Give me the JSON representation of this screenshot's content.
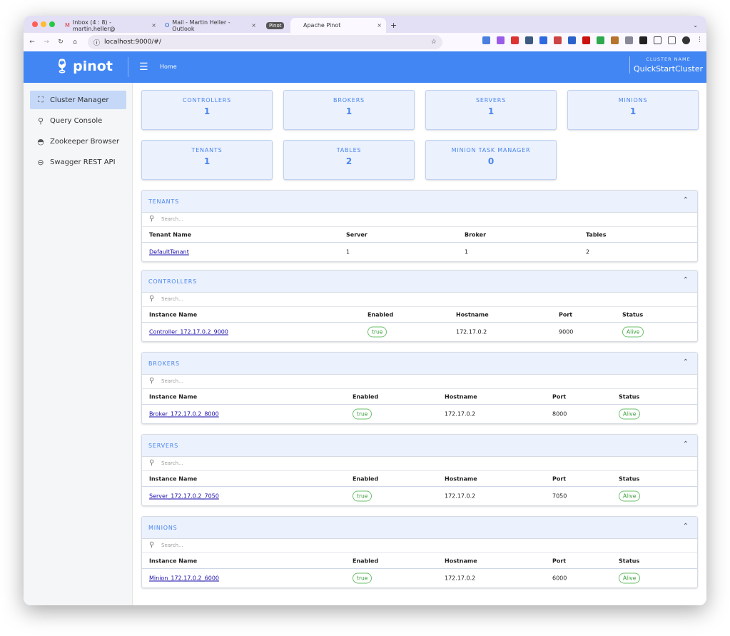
{
  "browser": {
    "tabs": [
      {
        "title": "Inbox (4 : 8) - martin.heller@",
        "icon": "gmail-icon"
      },
      {
        "title": "Mail - Martin Heller - Outlook",
        "icon": "outlook-icon"
      }
    ],
    "tab_group": "Pinot",
    "active_tab": "Apache Pinot",
    "url": "localhost:9000/#/"
  },
  "header": {
    "logo": "pinot",
    "breadcrumb": "Home",
    "cluster_label": "CLUSTER NAME",
    "cluster_name": "QuickStartCluster"
  },
  "sidebar": {
    "items": [
      {
        "label": "Cluster Manager",
        "icon": "cluster-icon",
        "active": true
      },
      {
        "label": "Query Console",
        "icon": "query-icon"
      },
      {
        "label": "Zookeeper Browser",
        "icon": "zookeeper-icon"
      },
      {
        "label": "Swagger REST API",
        "icon": "swagger-icon"
      }
    ]
  },
  "stats": [
    {
      "label": "CONTROLLERS",
      "value": "1"
    },
    {
      "label": "BROKERS",
      "value": "1"
    },
    {
      "label": "SERVERS",
      "value": "1"
    },
    {
      "label": "MINIONS",
      "value": "1"
    },
    {
      "label": "TENANTS",
      "value": "1"
    },
    {
      "label": "TABLES",
      "value": "2"
    },
    {
      "label": "MINION TASK MANAGER",
      "value": "0"
    }
  ],
  "search_placeholder": "Search...",
  "sections": [
    {
      "title": "TENANTS",
      "columns": [
        "Tenant Name",
        "Server",
        "Broker",
        "Tables"
      ],
      "rows": [
        [
          "DefaultTenant",
          "1",
          "1",
          "2"
        ]
      ]
    },
    {
      "title": "CONTROLLERS",
      "columns": [
        "Instance Name",
        "Enabled",
        "Hostname",
        "Port",
        "Status"
      ],
      "rows": [
        [
          "Controller_172.17.0.2_9000",
          "true",
          "172.17.0.2",
          "9000",
          "Alive"
        ]
      ]
    },
    {
      "title": "BROKERS",
      "columns": [
        "Instance Name",
        "Enabled",
        "Hostname",
        "Port",
        "Status"
      ],
      "rows": [
        [
          "Broker_172.17.0.2_8000",
          "true",
          "172.17.0.2",
          "8000",
          "Alive"
        ]
      ]
    },
    {
      "title": "SERVERS",
      "columns": [
        "Instance Name",
        "Enabled",
        "Hostname",
        "Port",
        "Status"
      ],
      "rows": [
        [
          "Server_172.17.0.2_7050",
          "true",
          "172.17.0.2",
          "7050",
          "Alive"
        ]
      ]
    },
    {
      "title": "MINIONS",
      "columns": [
        "Instance Name",
        "Enabled",
        "Hostname",
        "Port",
        "Status"
      ],
      "rows": [
        [
          "Minion_172.17.0.2_6000",
          "true",
          "172.17.0.2",
          "6000",
          "Alive"
        ]
      ]
    }
  ]
}
